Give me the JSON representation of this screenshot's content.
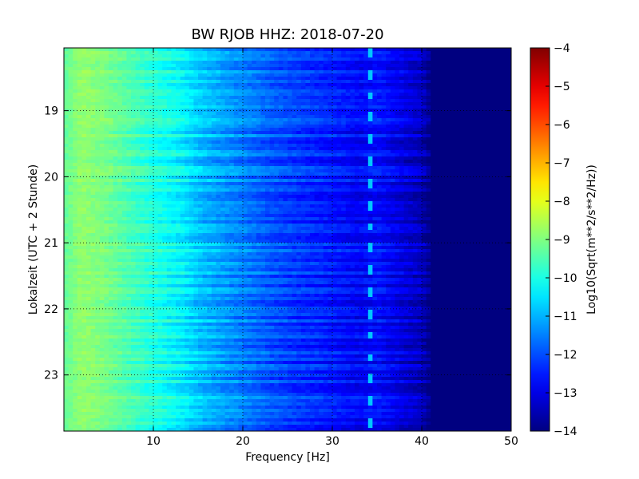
{
  "chart_data": {
    "type": "heatmap",
    "title": "BW RJOB HHZ: 2018-07-20",
    "xlabel": "Frequency [Hz]",
    "ylabel": "Lokalzeit (UTC + 2 Stunde)",
    "xlim": [
      0,
      50
    ],
    "ylim_hours": [
      18.05,
      23.85
    ],
    "x_ticks": [
      10,
      20,
      30,
      40,
      50
    ],
    "x_tick_labels": [
      "10",
      "20",
      "30",
      "40",
      "50"
    ],
    "y_ticks": [
      19,
      20,
      21,
      22,
      23
    ],
    "y_tick_labels": [
      "19",
      "20",
      "21",
      "22",
      "23"
    ],
    "grid": true,
    "colormap": "jet",
    "colorbar": {
      "label": "Log10(Sqrt(m**2/s**2/Hz))",
      "range": [
        -14,
        -4
      ],
      "ticks": [
        -4,
        -5,
        -6,
        -7,
        -8,
        -9,
        -10,
        -11,
        -12,
        -13,
        -14
      ],
      "tick_labels": [
        "−4",
        "−5",
        "−6",
        "−7",
        "−8",
        "−9",
        "−10",
        "−11",
        "−12",
        "−13",
        "−14"
      ]
    },
    "spectrum_profile": {
      "frequency_hz": [
        0,
        2,
        5,
        8,
        10,
        13,
        15,
        17,
        20,
        23,
        26,
        30,
        33,
        35,
        38,
        40,
        41,
        50
      ],
      "log10_amplitude": [
        -9.3,
        -8.8,
        -9.1,
        -9.6,
        -9.9,
        -10.3,
        -10.8,
        -11.1,
        -11.5,
        -11.9,
        -12.2,
        -12.5,
        -12.8,
        -12.6,
        -13.1,
        -13.4,
        -14.0,
        -14.0
      ]
    },
    "narrowband_feature": {
      "frequency_hz": 34.3,
      "log10_amplitude": -10.8,
      "recurrence_hours": 0.33
    },
    "dark_band": {
      "from_frequency_hz": 41,
      "to_frequency_hz": 50,
      "log10_amplitude": -14.0
    }
  }
}
